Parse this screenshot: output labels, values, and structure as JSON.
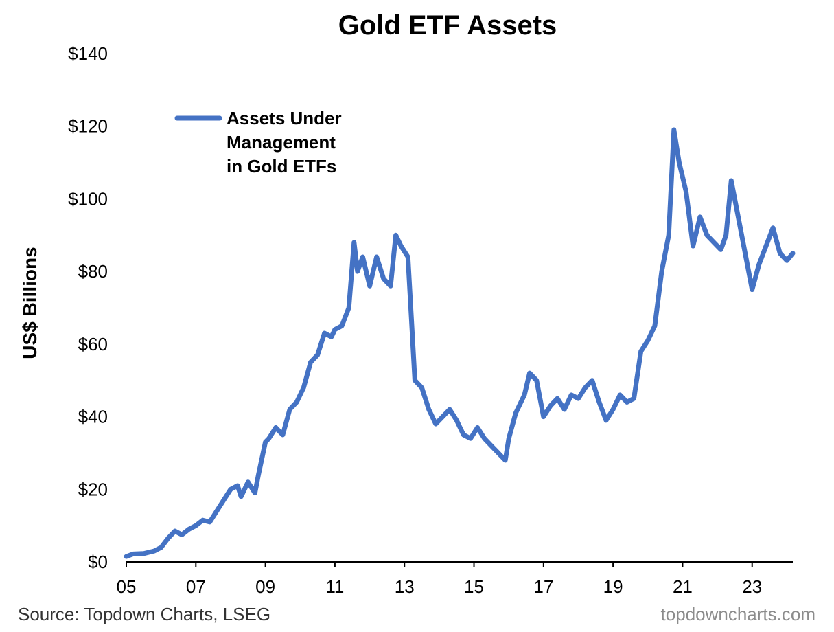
{
  "footer": {
    "source": "Source: Topdown Charts, LSEG",
    "brand": "topdowncharts.com",
    "source_color": "#333333",
    "brand_color": "#8c8c8c"
  },
  "chart_data": {
    "type": "line",
    "title": "Gold ETF Assets",
    "ylabel": "US$ Billions",
    "xlabel": "",
    "ylim": [
      0,
      140
    ],
    "y_tick_values": [
      0,
      20,
      40,
      60,
      80,
      100,
      120,
      140
    ],
    "y_tick_labels": [
      "$0",
      "$20",
      "$40",
      "$60",
      "$80",
      "$100",
      "$120",
      "$140"
    ],
    "x_range": [
      2005.0,
      2024.17
    ],
    "x_tick_values": [
      2005,
      2007,
      2009,
      2011,
      2013,
      2015,
      2017,
      2019,
      2021,
      2023
    ],
    "x_tick_labels": [
      "05",
      "07",
      "09",
      "11",
      "13",
      "15",
      "17",
      "19",
      "21",
      "23"
    ],
    "grid": false,
    "legend_position": "top-left",
    "line_color": "#4472C4",
    "series": [
      {
        "name": "Assets Under Management in Gold ETFs",
        "legend_lines": [
          "Assets Under",
          "Management",
          "in Gold ETFs"
        ],
        "x": [
          2005.0,
          2005.2,
          2005.5,
          2005.8,
          2006.0,
          2006.2,
          2006.4,
          2006.6,
          2006.8,
          2007.0,
          2007.2,
          2007.4,
          2007.6,
          2007.8,
          2008.0,
          2008.2,
          2008.3,
          2008.5,
          2008.7,
          2008.8,
          2009.0,
          2009.1,
          2009.3,
          2009.5,
          2009.7,
          2009.9,
          2010.1,
          2010.3,
          2010.5,
          2010.7,
          2010.9,
          2011.0,
          2011.2,
          2011.4,
          2011.55,
          2011.65,
          2011.8,
          2012.0,
          2012.2,
          2012.4,
          2012.6,
          2012.75,
          2012.9,
          2013.1,
          2013.3,
          2013.5,
          2013.7,
          2013.9,
          2014.1,
          2014.3,
          2014.5,
          2014.7,
          2014.9,
          2015.1,
          2015.3,
          2015.5,
          2015.7,
          2015.9,
          2016.0,
          2016.2,
          2016.45,
          2016.6,
          2016.8,
          2017.0,
          2017.2,
          2017.4,
          2017.6,
          2017.8,
          2018.0,
          2018.2,
          2018.4,
          2018.6,
          2018.8,
          2019.0,
          2019.2,
          2019.4,
          2019.6,
          2019.8,
          2020.0,
          2020.2,
          2020.4,
          2020.6,
          2020.75,
          2020.9,
          2021.1,
          2021.3,
          2021.5,
          2021.7,
          2021.9,
          2022.1,
          2022.25,
          2022.4,
          2022.6,
          2022.8,
          2023.0,
          2023.2,
          2023.4,
          2023.6,
          2023.8,
          2024.0,
          2024.17
        ],
        "values": [
          1.5,
          2.2,
          2.3,
          3,
          4,
          6.5,
          8.5,
          7.5,
          9,
          10,
          11.5,
          11,
          14,
          17,
          20,
          21,
          18,
          22,
          19,
          24,
          33,
          34,
          37,
          35,
          42,
          44,
          48,
          55,
          57,
          63,
          62,
          64,
          65,
          70,
          88,
          80,
          84,
          76,
          84,
          78,
          76,
          90,
          87,
          84,
          50,
          48,
          42,
          38,
          40,
          42,
          39,
          35,
          34,
          37,
          34,
          32,
          30,
          28,
          34,
          41,
          46,
          52,
          50,
          40,
          43,
          45,
          42,
          46,
          45,
          48,
          50,
          44,
          39,
          42,
          46,
          44,
          45,
          58,
          61,
          65,
          80,
          90,
          119,
          110,
          102,
          87,
          95,
          90,
          88,
          86,
          90,
          105,
          95,
          85,
          75,
          82,
          87,
          92,
          85,
          83,
          85
        ]
      }
    ]
  }
}
